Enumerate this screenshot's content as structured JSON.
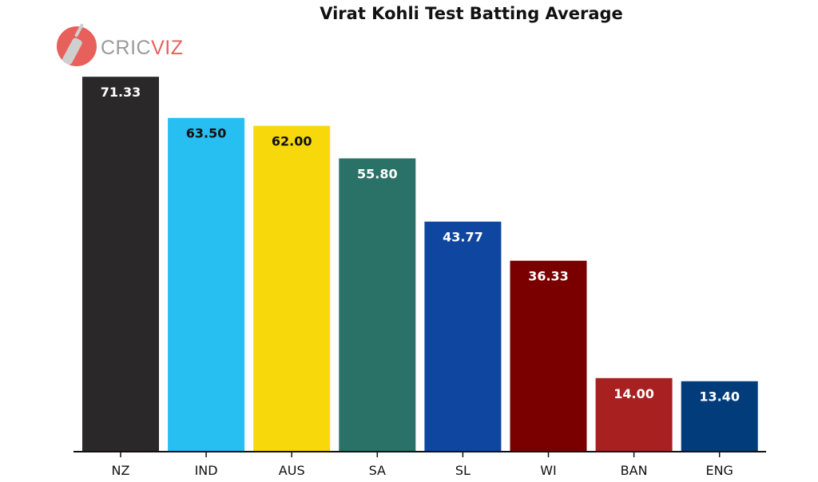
{
  "logo": {
    "text_a": "CRIC",
    "text_b": "VIZ",
    "colors": {
      "text_a": "#9a9a9a",
      "text_b": "#e8605b",
      "badge": "#e8605b",
      "bat": "#cfcfcf"
    }
  },
  "chart_data": {
    "type": "bar",
    "title": "Virat Kohli Test Batting Average",
    "xlabel": "",
    "ylabel": "",
    "categories": [
      "NZ",
      "IND",
      "AUS",
      "SA",
      "SL",
      "WI",
      "BAN",
      "ENG"
    ],
    "values": [
      71.33,
      63.5,
      62.0,
      55.8,
      43.77,
      36.33,
      14.0,
      13.4
    ],
    "value_labels": [
      "71.33",
      "63.50",
      "62.00",
      "55.80",
      "43.77",
      "36.33",
      "14.00",
      "13.40"
    ],
    "colors": [
      "#2a2829",
      "#27bef1",
      "#f7d80b",
      "#2a7268",
      "#0f47a0",
      "#7a0000",
      "#a82020",
      "#023c7b"
    ],
    "label_colors": [
      "#ffffff",
      "#111111",
      "#111111",
      "#ffffff",
      "#ffffff",
      "#ffffff",
      "#ffffff",
      "#ffffff"
    ],
    "ylim": [
      0,
      75
    ],
    "grid": false,
    "y_axis_shown": false
  }
}
